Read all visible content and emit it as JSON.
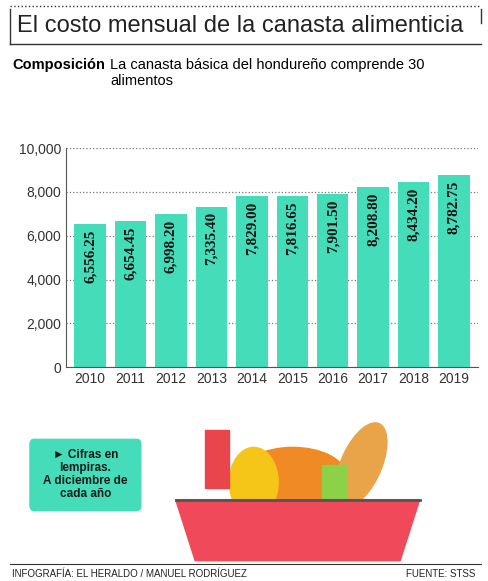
{
  "chart_data": {
    "type": "bar",
    "title": "El costo mensual de la canasta alimenticia",
    "subtitle": "Composición La canasta básica del hondureño comprende 30 alimentos",
    "categories": [
      "2010",
      "2011",
      "2012",
      "2013",
      "2014",
      "2015",
      "2016",
      "2017",
      "2018",
      "2019"
    ],
    "values": [
      6556.25,
      6654.45,
      6998.2,
      7335.4,
      7829.0,
      7816.65,
      7901.5,
      8208.8,
      8434.2,
      8782.75
    ],
    "value_labels": [
      "6,556.25",
      "6,654.45",
      "6,998.20",
      "7,335.40",
      "7,829.00",
      "7,816.65",
      "7,901.50",
      "8,208.80",
      "8,434.20",
      "8,782.75"
    ],
    "data_labels": true,
    "color": "#45dcb9",
    "ylim": [
      0,
      10000
    ],
    "yticks": [
      0,
      {
        "value": 2000,
        "label": "2,000"
      },
      {
        "value": 4000,
        "label": "4,000"
      },
      {
        "value": 6000,
        "label": "6,000"
      },
      {
        "value": 8000,
        "label": "8,000"
      },
      {
        "value": 10000,
        "label": "10,000"
      }
    ],
    "grid": true,
    "annotations": [
      "► Cifras en\nlempiras.\nA diciembre de\ncada año",
      "INFOGRAFÍA: EL HERALDO / MANUEL RODRÍGUEZ",
      "FUENTE: STSS"
    ]
  }
}
